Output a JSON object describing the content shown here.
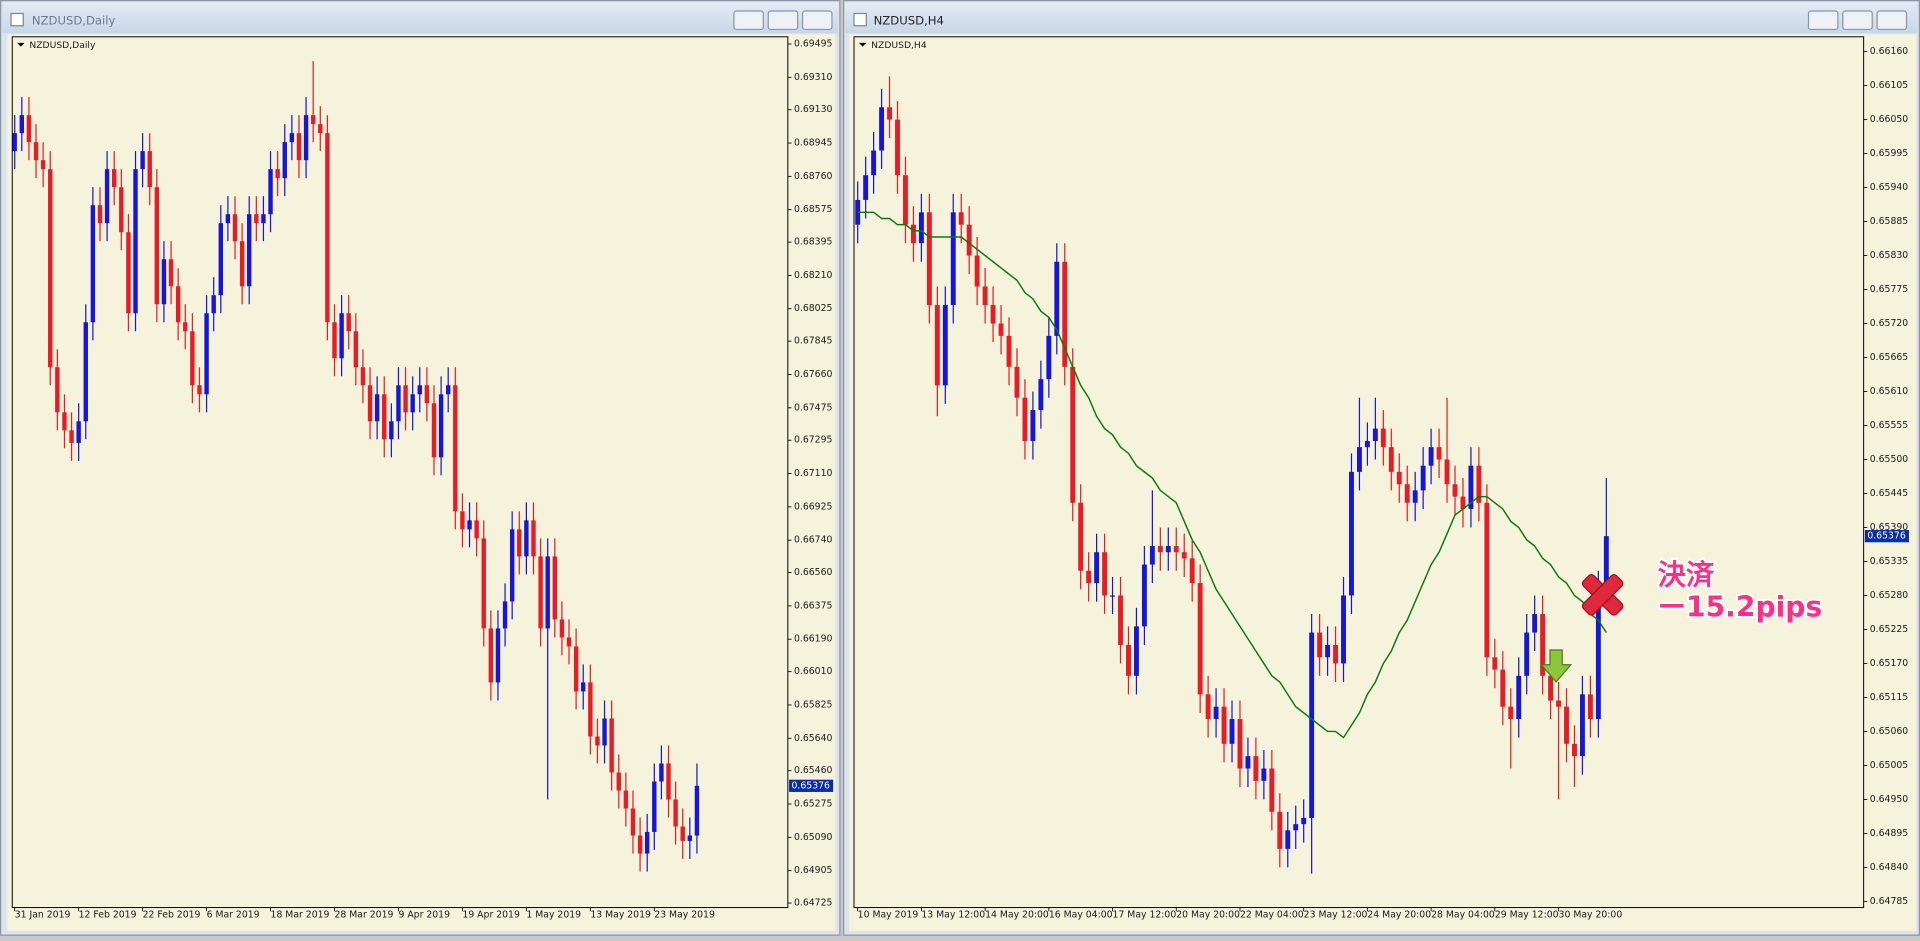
{
  "chart_data": [
    {
      "type": "candlestick",
      "title": "NZDUSD,Daily",
      "categories": [
        "31 Jan 2019",
        null,
        null,
        null,
        null,
        null,
        null,
        null,
        null,
        "12 Feb 2019",
        null,
        null,
        null,
        null,
        null,
        null,
        null,
        null,
        "22 Feb 2019",
        null,
        null,
        null,
        null,
        null,
        null,
        null,
        null,
        "6 Mar 2019",
        null,
        null,
        null,
        null,
        null,
        null,
        null,
        null,
        "18 Mar 2019",
        null,
        null,
        null,
        null,
        null,
        null,
        null,
        null,
        "28 Mar 2019",
        null,
        null,
        null,
        null,
        null,
        null,
        null,
        null,
        "9 Apr 2019",
        null,
        null,
        null,
        null,
        null,
        null,
        null,
        null,
        "19 Apr 2019",
        null,
        null,
        null,
        null,
        null,
        null,
        null,
        null,
        "1 May 2019",
        null,
        null,
        null,
        null,
        null,
        null,
        null,
        null,
        "13 May 2019",
        null,
        null,
        null,
        null,
        null,
        null,
        null,
        null,
        "23 May 2019",
        null,
        null,
        null,
        null,
        null,
        null
      ],
      "open": [
        0.689,
        0.69,
        0.691,
        0.6895,
        0.6885,
        0.688,
        0.677,
        0.6745,
        0.6735,
        0.6728,
        0.674,
        0.6795,
        0.686,
        0.685,
        0.688,
        0.687,
        0.6845,
        0.68,
        0.688,
        0.689,
        0.687,
        0.6805,
        0.683,
        0.6815,
        0.6795,
        0.679,
        0.676,
        0.6755,
        0.68,
        0.681,
        0.685,
        0.6855,
        0.684,
        0.6815,
        0.6855,
        0.685,
        0.6855,
        0.688,
        0.6875,
        0.6895,
        0.69,
        0.6885,
        0.691,
        0.6905,
        0.69,
        0.6795,
        0.6775,
        0.68,
        0.679,
        0.677,
        0.676,
        0.674,
        0.6755,
        0.673,
        0.674,
        0.676,
        0.6745,
        0.6755,
        0.676,
        0.675,
        0.672,
        0.6755,
        0.676,
        0.669,
        0.668,
        0.6685,
        0.6675,
        0.6625,
        0.6595,
        0.6625,
        0.664,
        0.668,
        0.6665,
        0.6685,
        0.6665,
        0.6625,
        0.6665,
        0.663,
        0.662,
        0.6615,
        0.659,
        0.6595,
        0.6565,
        0.656,
        0.6575,
        0.6545,
        0.6535,
        0.6525,
        0.651,
        0.65,
        0.6512,
        0.654,
        0.655,
        0.653,
        0.6515,
        0.6507,
        0.651
      ],
      "high": [
        0.691,
        0.692,
        0.692,
        0.6905,
        0.6895,
        0.689,
        0.678,
        0.6755,
        0.6745,
        0.675,
        0.6805,
        0.687,
        0.687,
        0.689,
        0.689,
        0.688,
        0.6855,
        0.689,
        0.69,
        0.69,
        0.688,
        0.684,
        0.684,
        0.6825,
        0.6805,
        0.68,
        0.677,
        0.681,
        0.682,
        0.686,
        0.6865,
        0.6865,
        0.685,
        0.6865,
        0.6865,
        0.6865,
        0.689,
        0.689,
        0.6905,
        0.691,
        0.691,
        0.692,
        0.694,
        0.6915,
        0.691,
        0.6805,
        0.681,
        0.681,
        0.68,
        0.678,
        0.677,
        0.6765,
        0.6765,
        0.675,
        0.677,
        0.677,
        0.6765,
        0.677,
        0.677,
        0.676,
        0.6765,
        0.677,
        0.677,
        0.67,
        0.6695,
        0.6695,
        0.6685,
        0.6635,
        0.6635,
        0.665,
        0.669,
        0.669,
        0.6695,
        0.6695,
        0.6675,
        0.6675,
        0.6675,
        0.664,
        0.663,
        0.6625,
        0.6605,
        0.6605,
        0.6575,
        0.6585,
        0.6585,
        0.6555,
        0.6545,
        0.6535,
        0.652,
        0.6522,
        0.655,
        0.656,
        0.656,
        0.654,
        0.6525,
        0.652,
        0.655
      ],
      "low": [
        0.688,
        0.689,
        0.6885,
        0.6875,
        0.687,
        0.676,
        0.6735,
        0.6725,
        0.6718,
        0.6718,
        0.673,
        0.6785,
        0.684,
        0.684,
        0.686,
        0.6835,
        0.679,
        0.679,
        0.687,
        0.686,
        0.6795,
        0.6795,
        0.6805,
        0.6785,
        0.678,
        0.675,
        0.6745,
        0.6745,
        0.679,
        0.68,
        0.684,
        0.683,
        0.6805,
        0.6805,
        0.684,
        0.684,
        0.6845,
        0.6865,
        0.6865,
        0.6885,
        0.6875,
        0.6875,
        0.6895,
        0.689,
        0.6785,
        0.6765,
        0.6765,
        0.678,
        0.676,
        0.675,
        0.673,
        0.673,
        0.672,
        0.672,
        0.673,
        0.6735,
        0.6735,
        0.6745,
        0.674,
        0.671,
        0.671,
        0.6745,
        0.668,
        0.667,
        0.667,
        0.6665,
        0.6615,
        0.6585,
        0.6585,
        0.6615,
        0.663,
        0.6655,
        0.6655,
        0.6655,
        0.6615,
        0.653,
        0.662,
        0.661,
        0.6605,
        0.658,
        0.658,
        0.6555,
        0.655,
        0.655,
        0.6535,
        0.6525,
        0.6515,
        0.65,
        0.649,
        0.649,
        0.6502,
        0.653,
        0.652,
        0.6505,
        0.6497,
        0.6497,
        0.65
      ],
      "close": [
        0.69,
        0.691,
        0.6895,
        0.6885,
        0.688,
        0.677,
        0.6745,
        0.6735,
        0.6728,
        0.674,
        0.6795,
        0.686,
        0.685,
        0.688,
        0.687,
        0.6845,
        0.68,
        0.688,
        0.689,
        0.687,
        0.6805,
        0.683,
        0.6815,
        0.6795,
        0.679,
        0.676,
        0.6755,
        0.68,
        0.681,
        0.685,
        0.6855,
        0.684,
        0.6815,
        0.6855,
        0.685,
        0.6855,
        0.688,
        0.6875,
        0.6895,
        0.69,
        0.6885,
        0.691,
        0.6905,
        0.69,
        0.6795,
        0.6775,
        0.68,
        0.679,
        0.677,
        0.676,
        0.674,
        0.6755,
        0.673,
        0.674,
        0.676,
        0.6745,
        0.6755,
        0.676,
        0.675,
        0.672,
        0.6755,
        0.676,
        0.669,
        0.668,
        0.6685,
        0.6675,
        0.6625,
        0.6595,
        0.6625,
        0.664,
        0.668,
        0.6665,
        0.6685,
        0.6665,
        0.6625,
        0.6665,
        0.663,
        0.662,
        0.6615,
        0.659,
        0.6595,
        0.6565,
        0.656,
        0.6575,
        0.6545,
        0.6535,
        0.6525,
        0.651,
        0.65,
        0.6512,
        0.654,
        0.655,
        0.653,
        0.6515,
        0.6507,
        0.651,
        0.65376
      ],
      "up_color": "#1616d8",
      "down_color": "#e81c24",
      "ylim": [
        0.647,
        0.69535
      ],
      "yticks": [
        0.69495,
        {
          "value": 0.6931,
          "label": "0.69310"
        },
        {
          "value": 0.6913,
          "label": "0.69130"
        },
        0.68945,
        {
          "value": 0.6876,
          "label": "0.68760"
        },
        0.68575,
        0.68395,
        {
          "value": 0.6821,
          "label": "0.68210"
        },
        0.68025,
        0.67845,
        {
          "value": 0.6766,
          "label": "0.67660"
        },
        0.67475,
        0.67295,
        {
          "value": 0.6711,
          "label": "0.67110"
        },
        0.66925,
        {
          "value": 0.6674,
          "label": "0.66740"
        },
        {
          "value": 0.6656,
          "label": "0.66560"
        },
        0.66375,
        {
          "value": 0.6619,
          "label": "0.66190"
        },
        {
          "value": 0.6601,
          "label": "0.66010"
        },
        0.65825,
        {
          "value": 0.6564,
          "label": "0.65640"
        },
        {
          "value": 0.6546,
          "label": "0.65460"
        },
        0.65275,
        {
          "value": 0.6509,
          "label": "0.65090"
        },
        0.64905,
        0.64725
      ],
      "last_price": 0.65376
    },
    {
      "type": "candlestick",
      "title": "NZDUSD,H4",
      "categories": [
        "10 May 2019",
        null,
        null,
        null,
        null,
        null,
        null,
        null,
        "13 May 12:00",
        null,
        null,
        null,
        null,
        null,
        null,
        null,
        "14 May 20:00",
        null,
        null,
        null,
        null,
        null,
        null,
        null,
        "16 May 04:00",
        null,
        null,
        null,
        null,
        null,
        null,
        null,
        "17 May 12:00",
        null,
        null,
        null,
        null,
        null,
        null,
        null,
        "20 May 20:00",
        null,
        null,
        null,
        null,
        null,
        null,
        null,
        "22 May 04:00",
        null,
        null,
        null,
        null,
        null,
        null,
        null,
        "23 May 12:00",
        null,
        null,
        null,
        null,
        null,
        null,
        null,
        "24 May 20:00",
        null,
        null,
        null,
        null,
        null,
        null,
        null,
        "28 May 04:00",
        null,
        null,
        null,
        null,
        null,
        null,
        null,
        "29 May 12:00",
        null,
        null,
        null,
        null,
        null,
        null,
        null,
        "30 May 20:00",
        null,
        null,
        null,
        null,
        null,
        null
      ],
      "open": [
        0.6588,
        0.6592,
        0.6596,
        0.66,
        0.6607,
        0.6605,
        0.6596,
        0.6588,
        0.6585,
        0.659,
        0.6575,
        0.6562,
        0.6575,
        0.659,
        0.6588,
        0.6583,
        0.6578,
        0.6575,
        0.6572,
        0.657,
        0.6565,
        0.656,
        0.6553,
        0.6558,
        0.6563,
        0.657,
        0.6582,
        0.6565,
        0.6543,
        0.6532,
        0.653,
        0.6535,
        0.6528,
        0.6528,
        0.652,
        0.6515,
        0.6523,
        0.6533,
        0.6536,
        0.6535,
        0.6536,
        0.6535,
        0.6534,
        0.653,
        0.6512,
        0.6508,
        0.651,
        0.6504,
        0.6508,
        0.65,
        0.6502,
        0.6498,
        0.65,
        0.6493,
        0.6487,
        0.649,
        0.6491,
        0.6492,
        0.6522,
        0.6518,
        0.652,
        0.6517,
        0.6528,
        0.6548,
        0.6552,
        0.6553,
        0.6555,
        0.6552,
        0.6548,
        0.6546,
        0.6543,
        0.6545,
        0.6549,
        0.6552,
        0.655,
        0.6546,
        0.6544,
        0.6542,
        0.6549,
        0.6543,
        0.6518,
        0.6516,
        0.651,
        0.6508,
        0.6515,
        0.6522,
        0.6525,
        0.6515,
        0.6511,
        0.651,
        0.6504,
        0.6502,
        0.6512,
        0.6508,
        0.6529
      ],
      "high": [
        0.6595,
        0.6599,
        0.6603,
        0.661,
        0.6612,
        0.6608,
        0.6599,
        0.6591,
        0.6593,
        0.6593,
        0.6578,
        0.6578,
        0.6593,
        0.6593,
        0.6591,
        0.6586,
        0.6581,
        0.6578,
        0.6575,
        0.6573,
        0.6568,
        0.6563,
        0.6561,
        0.6566,
        0.6573,
        0.6585,
        0.6585,
        0.6568,
        0.6546,
        0.6535,
        0.6538,
        0.6538,
        0.6531,
        0.6531,
        0.6523,
        0.6526,
        0.6536,
        0.6545,
        0.6539,
        0.6539,
        0.6539,
        0.6538,
        0.6537,
        0.6533,
        0.6515,
        0.6513,
        0.6513,
        0.6511,
        0.6511,
        0.6505,
        0.6505,
        0.6503,
        0.6503,
        0.6496,
        0.6493,
        0.6494,
        0.6495,
        0.6525,
        0.6525,
        0.6523,
        0.6523,
        0.6531,
        0.6551,
        0.656,
        0.6556,
        0.656,
        0.6558,
        0.6555,
        0.6551,
        0.6549,
        0.6548,
        0.6552,
        0.6555,
        0.6555,
        0.656,
        0.6549,
        0.6547,
        0.6552,
        0.6552,
        0.6546,
        0.6521,
        0.6519,
        0.6513,
        0.6518,
        0.6525,
        0.6528,
        0.6528,
        0.6518,
        0.6514,
        0.6513,
        0.6507,
        0.6515,
        0.6515,
        0.6532,
        0.6547
      ],
      "low": [
        0.6585,
        0.6589,
        0.6593,
        0.6597,
        0.6602,
        0.6593,
        0.6585,
        0.6582,
        0.6582,
        0.6572,
        0.6557,
        0.6559,
        0.6572,
        0.6585,
        0.658,
        0.6575,
        0.6572,
        0.6569,
        0.6567,
        0.6562,
        0.6557,
        0.655,
        0.655,
        0.6555,
        0.656,
        0.6567,
        0.6562,
        0.654,
        0.6529,
        0.6527,
        0.6527,
        0.6525,
        0.6525,
        0.6517,
        0.6512,
        0.6512,
        0.652,
        0.653,
        0.6532,
        0.6532,
        0.6532,
        0.6531,
        0.6527,
        0.6509,
        0.6505,
        0.6505,
        0.6501,
        0.6501,
        0.6497,
        0.6497,
        0.6495,
        0.6495,
        0.649,
        0.6484,
        0.6484,
        0.6487,
        0.6488,
        0.6483,
        0.6515,
        0.6515,
        0.6514,
        0.6514,
        0.6525,
        0.6545,
        0.6549,
        0.655,
        0.6549,
        0.6545,
        0.6543,
        0.654,
        0.654,
        0.6542,
        0.6546,
        0.6547,
        0.6543,
        0.6541,
        0.6539,
        0.6539,
        0.654,
        0.6515,
        0.6513,
        0.6507,
        0.65,
        0.6505,
        0.6512,
        0.6519,
        0.6512,
        0.6508,
        0.6495,
        0.6501,
        0.6497,
        0.6499,
        0.6505,
        0.6505,
        0.6526
      ],
      "close": [
        0.6592,
        0.6596,
        0.66,
        0.6607,
        0.6605,
        0.6596,
        0.6588,
        0.6585,
        0.659,
        0.6575,
        0.6562,
        0.6575,
        0.659,
        0.6588,
        0.6583,
        0.6578,
        0.6575,
        0.6572,
        0.657,
        0.6565,
        0.656,
        0.6553,
        0.6558,
        0.6563,
        0.657,
        0.6582,
        0.6565,
        0.6543,
        0.6532,
        0.653,
        0.6535,
        0.6528,
        0.6528,
        0.652,
        0.6515,
        0.6523,
        0.6533,
        0.6536,
        0.6535,
        0.6536,
        0.6535,
        0.6534,
        0.653,
        0.6512,
        0.6508,
        0.651,
        0.6504,
        0.6508,
        0.65,
        0.6502,
        0.6498,
        0.65,
        0.6493,
        0.6487,
        0.649,
        0.6491,
        0.6492,
        0.6522,
        0.6518,
        0.652,
        0.6517,
        0.6528,
        0.6548,
        0.6552,
        0.6553,
        0.6555,
        0.6552,
        0.6548,
        0.6546,
        0.6543,
        0.6545,
        0.6549,
        0.6552,
        0.655,
        0.6546,
        0.6544,
        0.6542,
        0.6549,
        0.6543,
        0.6518,
        0.6516,
        0.651,
        0.6508,
        0.6515,
        0.6522,
        0.6525,
        0.6515,
        0.6511,
        0.651,
        0.6504,
        0.6502,
        0.6512,
        0.6508,
        0.6529,
        0.65376
      ],
      "ma_values": [
        0.659,
        0.659,
        0.659,
        0.6589,
        0.6589,
        0.6588,
        0.6588,
        0.6587,
        0.6587,
        0.6586,
        0.6586,
        0.6586,
        0.6586,
        0.6586,
        0.6585,
        0.6584,
        0.6583,
        0.6582,
        0.6581,
        0.658,
        0.6579,
        0.6577,
        0.6576,
        0.6574,
        0.6573,
        0.6571,
        0.6568,
        0.6565,
        0.6562,
        0.656,
        0.6557,
        0.6555,
        0.6554,
        0.6552,
        0.6551,
        0.6549,
        0.6548,
        0.6547,
        0.6545,
        0.6544,
        0.6543,
        0.654,
        0.6537,
        0.6535,
        0.6532,
        0.6529,
        0.6527,
        0.6525,
        0.6523,
        0.6521,
        0.6519,
        0.6517,
        0.6515,
        0.6514,
        0.6512,
        0.651,
        0.6509,
        0.6508,
        0.6507,
        0.6506,
        0.6506,
        0.6505,
        0.6507,
        0.6509,
        0.6512,
        0.6514,
        0.6517,
        0.6519,
        0.6522,
        0.6524,
        0.6527,
        0.653,
        0.6533,
        0.6535,
        0.6538,
        0.6541,
        0.6542,
        0.6543,
        0.6544,
        0.6544,
        0.6543,
        0.6542,
        0.654,
        0.6539,
        0.6537,
        0.6536,
        0.6534,
        0.6533,
        0.6531,
        0.653,
        0.6528,
        0.6527,
        0.6525,
        0.6524,
        0.6522
      ],
      "ma_color": "#0b7a0b",
      "up_color": "#1616d8",
      "down_color": "#e81c24",
      "ylim": [
        0.64775,
        0.66184
      ],
      "yticks": [
        {
          "value": 0.6616,
          "label": "0.66160"
        },
        0.66105,
        {
          "value": 0.6605,
          "label": "0.66050"
        },
        0.65995,
        {
          "value": 0.6594,
          "label": "0.65940"
        },
        0.65885,
        {
          "value": 0.6583,
          "label": "0.65830"
        },
        0.65775,
        {
          "value": 0.6572,
          "label": "0.65720"
        },
        0.65665,
        {
          "value": 0.6561,
          "label": "0.65610"
        },
        0.65555,
        {
          "value": 0.655,
          "label": "0.65500"
        },
        0.65445,
        {
          "value": 0.6539,
          "label": "0.65390"
        },
        0.65335,
        {
          "value": 0.6528,
          "label": "0.65280"
        },
        0.65225,
        {
          "value": 0.6517,
          "label": "0.65170"
        },
        0.65115,
        {
          "value": 0.6506,
          "label": "0.65060"
        },
        0.65005,
        {
          "value": 0.6495,
          "label": "0.64950"
        },
        0.64895,
        {
          "value": 0.6484,
          "label": "0.64840"
        },
        0.64785
      ],
      "last_price": 0.65376,
      "annotations": [
        "決済",
        "ー15.2pips"
      ]
    }
  ]
}
